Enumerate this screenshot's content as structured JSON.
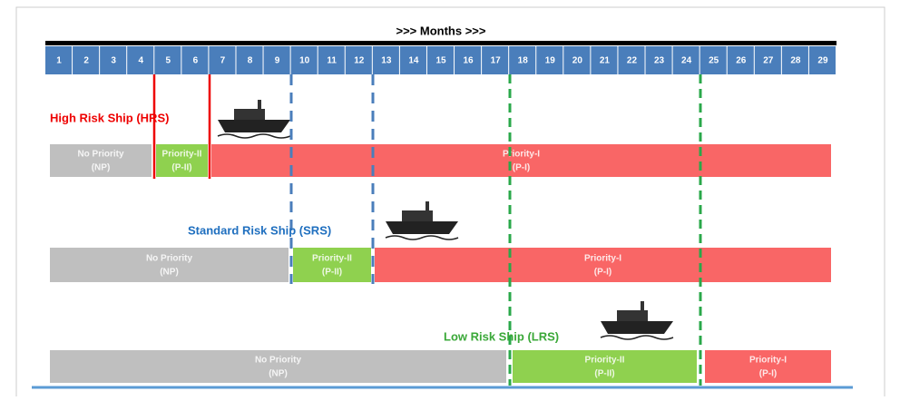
{
  "header": {
    "title": ">>> Months >>>",
    "months": [
      1,
      2,
      3,
      4,
      5,
      6,
      7,
      8,
      9,
      10,
      11,
      12,
      13,
      14,
      15,
      16,
      17,
      18,
      19,
      20,
      21,
      22,
      23,
      24,
      25,
      26,
      27,
      28,
      29
    ]
  },
  "rows": [
    {
      "label": "High Risk Ship (HRS)",
      "bars": [
        {
          "name": "No Priority",
          "code": "(NP)"
        },
        {
          "name": "Priority-II",
          "code": "(P-II)"
        },
        {
          "name": "Priority-I",
          "code": "(P-I)"
        }
      ]
    },
    {
      "label": "Standard Risk Ship (SRS)",
      "bars": [
        {
          "name": "No Priority",
          "code": "(NP)"
        },
        {
          "name": "Priority-II",
          "code": "(P-II)"
        },
        {
          "name": "Priority-I",
          "code": "(P-I)"
        }
      ]
    },
    {
      "label": "Low Risk Ship (LRS)",
      "bars": [
        {
          "name": "No Priority",
          "code": "(NP)"
        },
        {
          "name": "Priority-II",
          "code": "(P-II)"
        },
        {
          "name": "Priority-I",
          "code": "(P-I)"
        }
      ]
    }
  ]
}
